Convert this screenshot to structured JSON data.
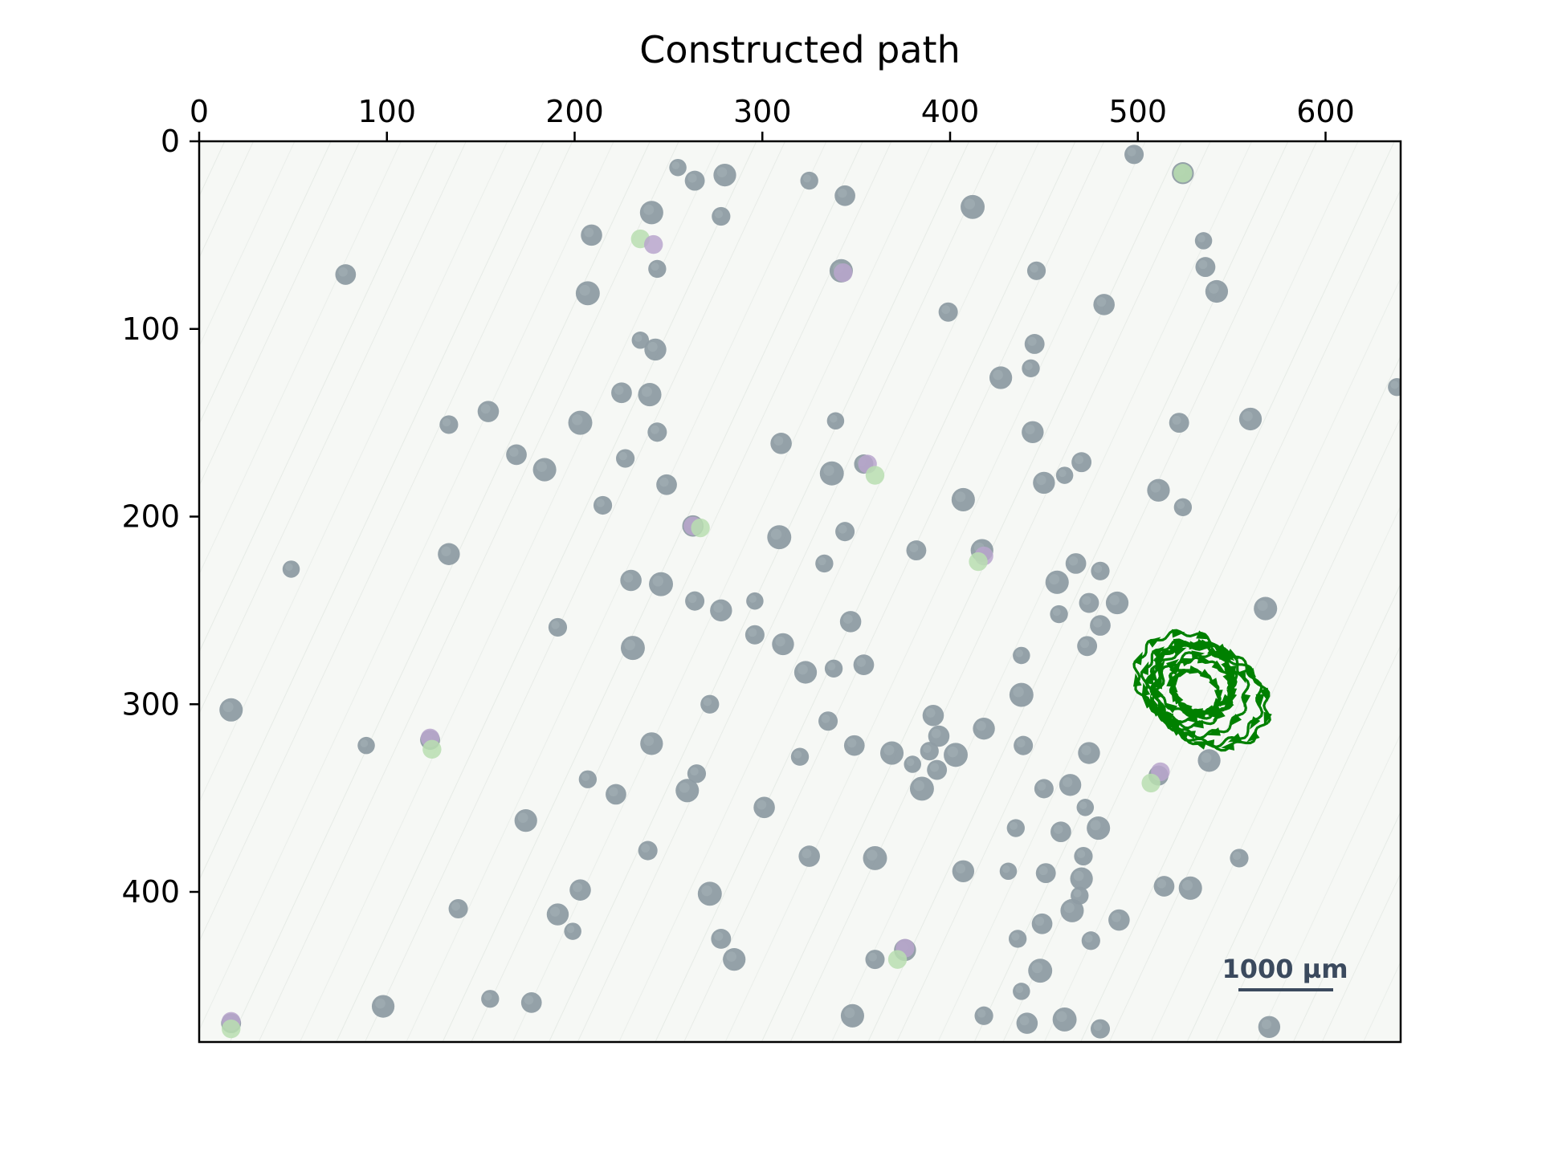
{
  "chart_data": {
    "type": "scatter",
    "title": "Constructed path",
    "xlabel": "",
    "ylabel": "",
    "xlim": [
      0,
      640
    ],
    "ylim": [
      480,
      0
    ],
    "x_axis_position": "top",
    "y_axis_inverted": true,
    "grid": false,
    "xticks": [
      {
        "value": 0,
        "label": "0"
      },
      {
        "value": 100,
        "label": "100"
      },
      {
        "value": 200,
        "label": "200"
      },
      {
        "value": 300,
        "label": "300"
      },
      {
        "value": 400,
        "label": "400"
      },
      {
        "value": 500,
        "label": "500"
      },
      {
        "value": 600,
        "label": "600"
      }
    ],
    "yticks": [
      {
        "value": 0,
        "label": "0"
      },
      {
        "value": 100,
        "label": "100"
      },
      {
        "value": 200,
        "label": "200"
      },
      {
        "value": 300,
        "label": "300"
      },
      {
        "value": 400,
        "label": "400"
      }
    ],
    "background_image": {
      "description_for_render": "microscope image with grey droplets",
      "scalebar_label": "1000 µm",
      "droplets": [
        [
          255,
          14
        ],
        [
          264,
          21
        ],
        [
          280,
          18
        ],
        [
          325,
          21
        ],
        [
          344,
          29
        ],
        [
          241,
          38
        ],
        [
          278,
          40
        ],
        [
          209,
          50
        ],
        [
          412,
          35
        ],
        [
          498,
          7
        ],
        [
          524,
          17
        ],
        [
          535,
          53
        ],
        [
          536,
          67
        ],
        [
          542,
          80
        ],
        [
          244,
          68
        ],
        [
          78,
          71
        ],
        [
          342,
          69
        ],
        [
          446,
          69
        ],
        [
          482,
          87
        ],
        [
          207,
          81
        ],
        [
          399,
          91
        ],
        [
          243,
          111
        ],
        [
          235,
          106
        ],
        [
          445,
          108
        ],
        [
          427,
          126
        ],
        [
          443,
          121
        ],
        [
          225,
          134
        ],
        [
          240,
          135
        ],
        [
          133,
          151
        ],
        [
          154,
          144
        ],
        [
          203,
          150
        ],
        [
          244,
          155
        ],
        [
          444,
          155
        ],
        [
          339,
          149
        ],
        [
          522,
          150
        ],
        [
          560,
          148
        ],
        [
          638,
          131
        ],
        [
          169,
          167
        ],
        [
          184,
          175
        ],
        [
          227,
          169
        ],
        [
          310,
          161
        ],
        [
          337,
          177
        ],
        [
          354,
          172
        ],
        [
          450,
          182
        ],
        [
          461,
          178
        ],
        [
          470,
          171
        ],
        [
          511,
          186
        ],
        [
          524,
          195
        ],
        [
          249,
          183
        ],
        [
          407,
          191
        ],
        [
          215,
          194
        ],
        [
          263,
          205
        ],
        [
          309,
          211
        ],
        [
          344,
          208
        ],
        [
          133,
          220
        ],
        [
          49,
          228
        ],
        [
          382,
          218
        ],
        [
          417,
          218
        ],
        [
          333,
          225
        ],
        [
          467,
          225
        ],
        [
          457,
          235
        ],
        [
          480,
          229
        ],
        [
          230,
          234
        ],
        [
          246,
          236
        ],
        [
          264,
          245
        ],
        [
          278,
          250
        ],
        [
          296,
          245
        ],
        [
          474,
          246
        ],
        [
          489,
          246
        ],
        [
          458,
          252
        ],
        [
          480,
          258
        ],
        [
          568,
          249
        ],
        [
          191,
          259
        ],
        [
          347,
          256
        ],
        [
          231,
          270
        ],
        [
          296,
          263
        ],
        [
          311,
          268
        ],
        [
          438,
          274
        ],
        [
          473,
          269
        ],
        [
          323,
          283
        ],
        [
          338,
          281
        ],
        [
          354,
          279
        ],
        [
          17,
          303
        ],
        [
          272,
          300
        ],
        [
          391,
          306
        ],
        [
          438,
          295
        ],
        [
          335,
          309
        ],
        [
          418,
          313
        ],
        [
          89,
          322
        ],
        [
          123,
          319
        ],
        [
          241,
          321
        ],
        [
          320,
          328
        ],
        [
          349,
          322
        ],
        [
          369,
          326
        ],
        [
          389,
          325
        ],
        [
          394,
          317
        ],
        [
          403,
          327
        ],
        [
          439,
          322
        ],
        [
          474,
          326
        ],
        [
          380,
          332
        ],
        [
          393,
          335
        ],
        [
          538,
          330
        ],
        [
          207,
          340
        ],
        [
          222,
          348
        ],
        [
          260,
          346
        ],
        [
          265,
          337
        ],
        [
          301,
          355
        ],
        [
          385,
          345
        ],
        [
          450,
          345
        ],
        [
          464,
          343
        ],
        [
          472,
          355
        ],
        [
          511,
          338
        ],
        [
          174,
          362
        ],
        [
          435,
          366
        ],
        [
          459,
          368
        ],
        [
          479,
          366
        ],
        [
          471,
          381
        ],
        [
          325,
          381
        ],
        [
          360,
          382
        ],
        [
          239,
          378
        ],
        [
          407,
          389
        ],
        [
          431,
          389
        ],
        [
          451,
          390
        ],
        [
          470,
          393
        ],
        [
          469,
          402
        ],
        [
          514,
          397
        ],
        [
          528,
          398
        ],
        [
          554,
          382
        ],
        [
          203,
          399
        ],
        [
          272,
          401
        ],
        [
          138,
          409
        ],
        [
          191,
          412
        ],
        [
          199,
          421
        ],
        [
          278,
          425
        ],
        [
          285,
          436
        ],
        [
          436,
          425
        ],
        [
          449,
          417
        ],
        [
          465,
          410
        ],
        [
          475,
          426
        ],
        [
          490,
          415
        ],
        [
          448,
          442
        ],
        [
          360,
          436
        ],
        [
          376,
          431
        ],
        [
          438,
          453
        ],
        [
          17,
          470
        ],
        [
          98,
          461
        ],
        [
          155,
          457
        ],
        [
          177,
          459
        ],
        [
          348,
          466
        ],
        [
          418,
          466
        ],
        [
          441,
          470
        ],
        [
          461,
          468
        ],
        [
          480,
          473
        ],
        [
          570,
          472
        ]
      ],
      "tinted_droplets": [
        [
          524,
          17,
          "green"
        ],
        [
          235,
          52,
          "green"
        ],
        [
          242,
          55,
          "purple"
        ],
        [
          343,
          70,
          "purple"
        ],
        [
          356,
          172,
          "purple"
        ],
        [
          360,
          178,
          "green"
        ],
        [
          263,
          205,
          "purple"
        ],
        [
          267,
          206,
          "green"
        ],
        [
          418,
          221,
          "purple"
        ],
        [
          415,
          224,
          "green"
        ],
        [
          123,
          318,
          "purple"
        ],
        [
          124,
          324,
          "green"
        ],
        [
          512,
          336,
          "purple"
        ],
        [
          507,
          342,
          "green"
        ],
        [
          376,
          430,
          "purple"
        ],
        [
          372,
          436,
          "green"
        ],
        [
          17,
          469,
          "purple"
        ],
        [
          17,
          473,
          "green"
        ]
      ]
    },
    "series": [
      {
        "type": "path",
        "color": "#008000",
        "description_for_render": "dense looping green trajectory",
        "loops": [
          {
            "cx": 527,
            "cy": 289,
            "rx": 24,
            "ry": 22,
            "rot": 20
          },
          {
            "cx": 532,
            "cy": 292,
            "rx": 26,
            "ry": 24,
            "rot": 25
          },
          {
            "cx": 537,
            "cy": 295,
            "rx": 29,
            "ry": 25,
            "rot": 28
          },
          {
            "cx": 529,
            "cy": 287,
            "rx": 21,
            "ry": 18,
            "rot": 15
          },
          {
            "cx": 534,
            "cy": 291,
            "rx": 17,
            "ry": 14,
            "rot": 30
          },
          {
            "cx": 540,
            "cy": 298,
            "rx": 30,
            "ry": 24,
            "rot": 22
          },
          {
            "cx": 525,
            "cy": 285,
            "rx": 26,
            "ry": 23,
            "rot": 10
          },
          {
            "cx": 531,
            "cy": 293,
            "rx": 13,
            "ry": 10,
            "rot": 35
          }
        ]
      }
    ]
  }
}
